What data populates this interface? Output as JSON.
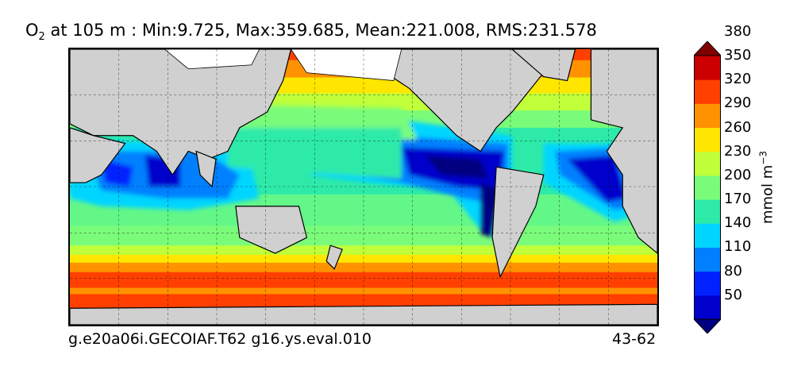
{
  "title": {
    "species": "O",
    "species_sub": "2",
    "rest": " at 105 m : Min:9.725, Max:359.685, Mean:221.008, RMS:231.578"
  },
  "footer": {
    "case_name": "g.e20a06i.GECOIAF.T62 g16.ys.eval.010",
    "years": "43-62"
  },
  "colorbar": {
    "units_base": "mmol m",
    "units_exp": "−3",
    "levels": [
      50,
      80,
      110,
      140,
      170,
      200,
      230,
      260,
      290,
      320,
      350,
      380
    ],
    "tick_labels": [
      "50",
      "80",
      "110",
      "140",
      "170",
      "200",
      "230",
      "260",
      "290",
      "320",
      "350",
      "380"
    ],
    "colors": [
      "#000080",
      "#0000cd",
      "#0022ff",
      "#0080ff",
      "#00d5ff",
      "#2eeaa9",
      "#7afc7a",
      "#c1ff3a",
      "#ffe600",
      "#ff9200",
      "#ff4000",
      "#cc0000",
      "#800000"
    ],
    "extend": "both"
  },
  "map": {
    "projection": "Plate Carrée, Pacific-centered",
    "land_color": "#d0d0d0",
    "gridlines": "dashed"
  }
}
